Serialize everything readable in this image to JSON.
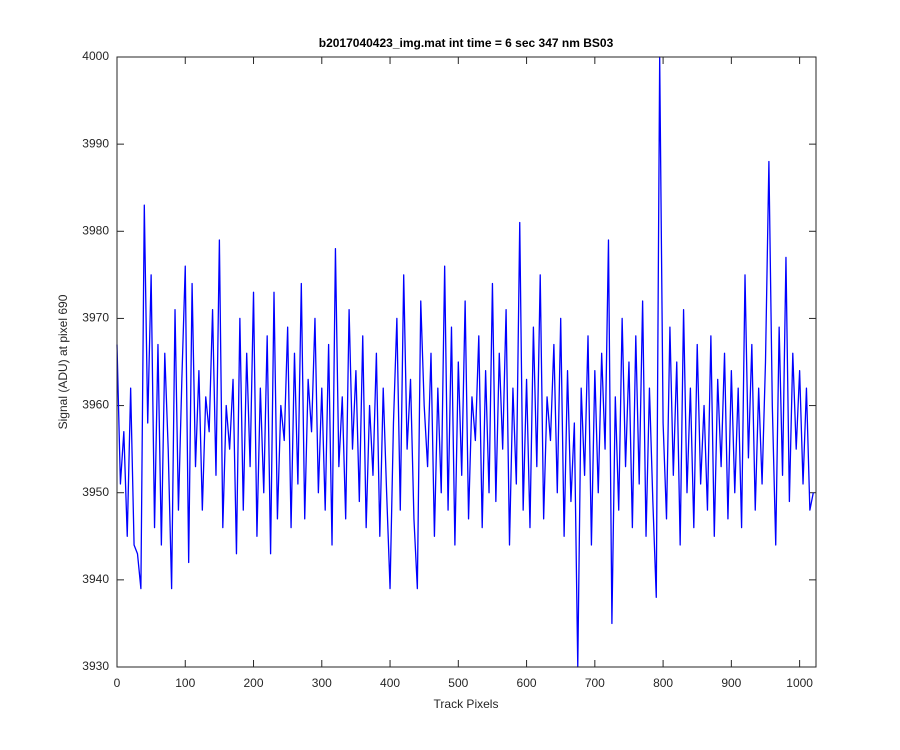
{
  "chart_data": {
    "type": "line",
    "title": "b2017040423_img.mat int time = 6 sec  347 nm BS03",
    "xlabel": "Track Pixels",
    "ylabel": "Signal (ADU) at pixel 690",
    "color": "#0000ff",
    "xlim": [
      0,
      1024
    ],
    "ylim": [
      3930,
      4000
    ],
    "xticks": [
      0,
      100,
      200,
      300,
      400,
      500,
      600,
      700,
      800,
      900,
      1000
    ],
    "yticks": [
      3930,
      3940,
      3950,
      3960,
      3970,
      3980,
      3990,
      4000
    ],
    "x": [
      0,
      5,
      10,
      15,
      20,
      25,
      30,
      35,
      40,
      45,
      50,
      55,
      60,
      65,
      70,
      75,
      80,
      85,
      90,
      95,
      100,
      105,
      110,
      115,
      120,
      125,
      130,
      135,
      140,
      145,
      150,
      155,
      160,
      165,
      170,
      175,
      180,
      185,
      190,
      195,
      200,
      205,
      210,
      215,
      220,
      225,
      230,
      235,
      240,
      245,
      250,
      255,
      260,
      265,
      270,
      275,
      280,
      285,
      290,
      295,
      300,
      305,
      310,
      315,
      320,
      325,
      330,
      335,
      340,
      345,
      350,
      355,
      360,
      365,
      370,
      375,
      380,
      385,
      390,
      395,
      400,
      405,
      410,
      415,
      420,
      425,
      430,
      435,
      440,
      445,
      450,
      455,
      460,
      465,
      470,
      475,
      480,
      485,
      490,
      495,
      500,
      505,
      510,
      515,
      520,
      525,
      530,
      535,
      540,
      545,
      550,
      555,
      560,
      565,
      570,
      575,
      580,
      585,
      590,
      595,
      600,
      605,
      610,
      615,
      620,
      625,
      630,
      635,
      640,
      645,
      650,
      655,
      660,
      665,
      670,
      675,
      680,
      685,
      690,
      695,
      700,
      705,
      710,
      715,
      720,
      725,
      730,
      735,
      740,
      745,
      750,
      755,
      760,
      765,
      770,
      775,
      780,
      785,
      790,
      795,
      800,
      805,
      810,
      815,
      820,
      825,
      830,
      835,
      840,
      845,
      850,
      855,
      860,
      865,
      870,
      875,
      880,
      885,
      890,
      895,
      900,
      905,
      910,
      915,
      920,
      925,
      930,
      935,
      940,
      945,
      950,
      955,
      960,
      965,
      970,
      975,
      980,
      985,
      990,
      995,
      1000,
      1005,
      1010,
      1015,
      1020
    ],
    "values": [
      3967,
      3951,
      3957,
      3945,
      3962,
      3944,
      3943,
      3939,
      3983,
      3958,
      3975,
      3946,
      3967,
      3944,
      3966,
      3955,
      3939,
      3971,
      3948,
      3963,
      3976,
      3942,
      3974,
      3953,
      3964,
      3948,
      3961,
      3957,
      3971,
      3952,
      3979,
      3946,
      3960,
      3955,
      3963,
      3943,
      3970,
      3948,
      3966,
      3953,
      3973,
      3945,
      3962,
      3950,
      3968,
      3943,
      3973,
      3947,
      3960,
      3956,
      3969,
      3946,
      3966,
      3951,
      3974,
      3947,
      3963,
      3957,
      3970,
      3950,
      3962,
      3948,
      3967,
      3944,
      3978,
      3953,
      3961,
      3947,
      3971,
      3955,
      3964,
      3949,
      3968,
      3946,
      3960,
      3952,
      3966,
      3945,
      3962,
      3950,
      3939,
      3958,
      3970,
      3948,
      3975,
      3955,
      3963,
      3947,
      3939,
      3972,
      3960,
      3953,
      3966,
      3945,
      3962,
      3950,
      3976,
      3948,
      3969,
      3944,
      3965,
      3952,
      3972,
      3947,
      3961,
      3956,
      3968,
      3946,
      3964,
      3950,
      3974,
      3949,
      3966,
      3955,
      3971,
      3944,
      3962,
      3951,
      3981,
      3948,
      3963,
      3946,
      3969,
      3953,
      3975,
      3947,
      3961,
      3956,
      3967,
      3950,
      3970,
      3945,
      3964,
      3949,
      3958,
      3930,
      3962,
      3952,
      3968,
      3944,
      3964,
      3950,
      3966,
      3955,
      3979,
      3935,
      3961,
      3948,
      3970,
      3953,
      3965,
      3946,
      3968,
      3951,
      3972,
      3945,
      3962,
      3949,
      3938,
      4000,
      3958,
      3947,
      3969,
      3952,
      3965,
      3944,
      3971,
      3950,
      3962,
      3946,
      3967,
      3951,
      3960,
      3948,
      3968,
      3945,
      3963,
      3953,
      3966,
      3947,
      3964,
      3950,
      3962,
      3946,
      3975,
      3954,
      3967,
      3948,
      3962,
      3951,
      3965,
      3988,
      3960,
      3944,
      3969,
      3952,
      3977,
      3949,
      3966,
      3955,
      3964,
      3951,
      3962,
      3948,
      3950
    ]
  }
}
